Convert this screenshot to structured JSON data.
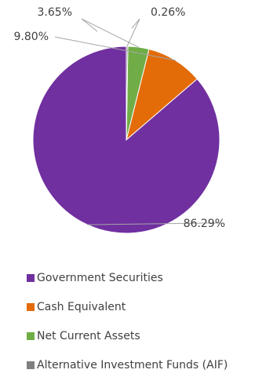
{
  "chart_data": {
    "type": "pie",
    "series": [
      {
        "name": "Government Securities",
        "value": 86.29,
        "label": "86.29%",
        "color": "#7030A0"
      },
      {
        "name": "Cash Equivalent",
        "value": 9.8,
        "label": "9.80%",
        "color": "#E36C09"
      },
      {
        "name": "Net Current Assets",
        "value": 3.65,
        "label": "3.65%",
        "color": "#70AD47"
      },
      {
        "name": "Alternative Investment Funds (AIF)",
        "value": 0.26,
        "label": "0.26%",
        "color": "#7F7F7F"
      }
    ],
    "start": "12 o'clock",
    "direction": "counterclockwise",
    "legend_position": "bottom",
    "label_color": "#404040",
    "leader_color": "#A6A6A6"
  }
}
